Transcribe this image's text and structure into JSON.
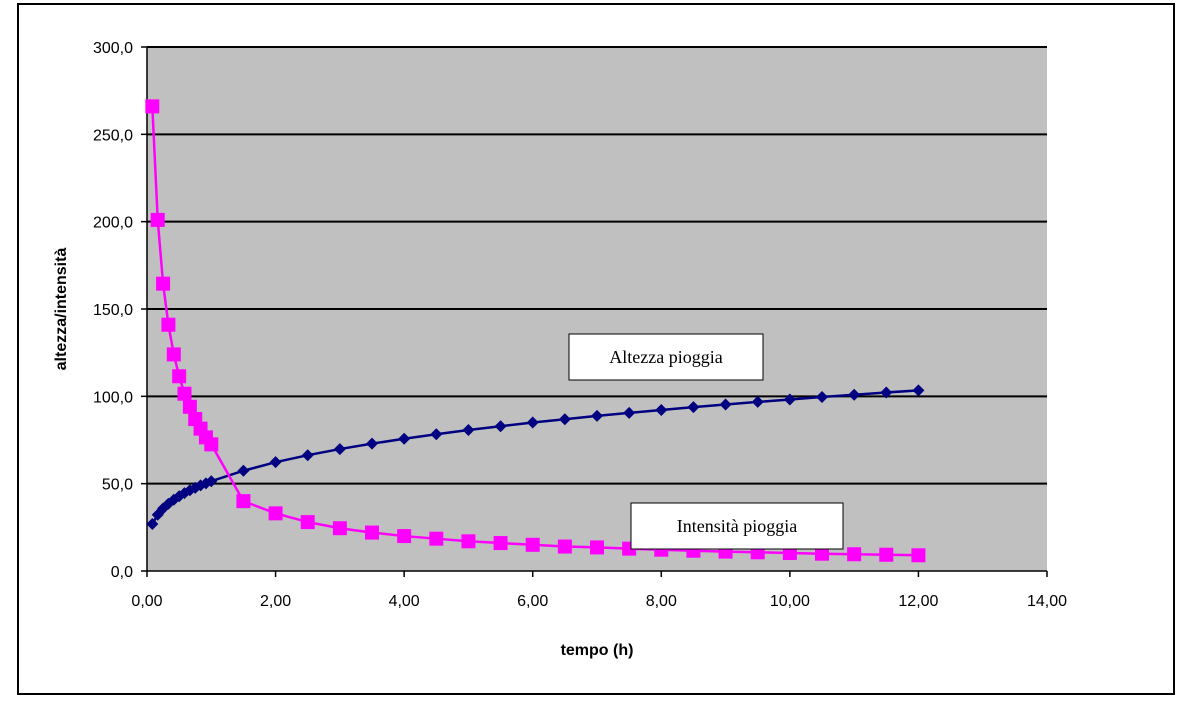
{
  "chart_data": {
    "type": "line",
    "title": "",
    "xlabel": "tempo (h)",
    "ylabel": "altezza/intensità",
    "xlim": [
      0,
      14
    ],
    "ylim": [
      0,
      300
    ],
    "xticks": [
      "0,00",
      "2,00",
      "4,00",
      "6,00",
      "8,00",
      "10,00",
      "12,00",
      "14,00"
    ],
    "yticks": [
      "0,0",
      "50,0",
      "100,0",
      "150,0",
      "200,0",
      "250,0",
      "300,0"
    ],
    "grid": "horizontal",
    "plot_background": "#c0c0c0",
    "legend": "none",
    "series": [
      {
        "name": "Altezza pioggia",
        "color": "#000080",
        "marker": "diamond",
        "x": [
          0.083,
          0.167,
          0.25,
          0.333,
          0.417,
          0.5,
          0.583,
          0.667,
          0.75,
          0.833,
          0.917,
          1.0,
          1.5,
          2.0,
          2.5,
          3.0,
          3.5,
          4.0,
          4.5,
          5.0,
          5.5,
          6.0,
          6.5,
          7.0,
          7.5,
          8.0,
          8.5,
          9.0,
          9.5,
          10.0,
          10.5,
          11.0,
          11.5,
          12.0
        ],
        "values": [
          26.9,
          32.2,
          35.8,
          38.5,
          40.8,
          42.8,
          44.6,
          46.2,
          47.6,
          49.0,
          50.2,
          51.4,
          57.4,
          62.3,
          66.3,
          69.8,
          72.9,
          75.7,
          78.3,
          80.7,
          82.9,
          85.0,
          86.9,
          88.8,
          90.5,
          92.2,
          93.8,
          95.3,
          96.8,
          98.2,
          99.6,
          100.9,
          102.2,
          103.4
        ]
      },
      {
        "name": "Intensità pioggia",
        "color": "#ff00ff",
        "marker": "square",
        "x": [
          0.083,
          0.167,
          0.25,
          0.333,
          0.417,
          0.5,
          0.583,
          0.667,
          0.75,
          0.833,
          0.917,
          1.0,
          1.5,
          2.0,
          2.5,
          3.0,
          3.5,
          4.0,
          4.5,
          5.0,
          5.5,
          6.0,
          6.5,
          7.0,
          7.5,
          8.0,
          8.5,
          9.0,
          9.5,
          10.0,
          10.5,
          11.0,
          11.5,
          12.0
        ],
        "values": [
          266.0,
          201.0,
          164.5,
          141.0,
          124.0,
          111.5,
          101.5,
          94.0,
          87.0,
          81.5,
          76.5,
          72.5,
          40.0,
          33.0,
          28.0,
          24.5,
          22.0,
          20.0,
          18.5,
          17.0,
          16.0,
          15.0,
          14.0,
          13.5,
          12.8,
          12.2,
          11.6,
          11.1,
          10.7,
          10.3,
          9.9,
          9.6,
          9.3,
          9.0
        ]
      }
    ],
    "annotations": [
      {
        "text": "Altezza pioggia",
        "series": 0
      },
      {
        "text": "Intensità pioggia",
        "series": 1
      }
    ]
  }
}
